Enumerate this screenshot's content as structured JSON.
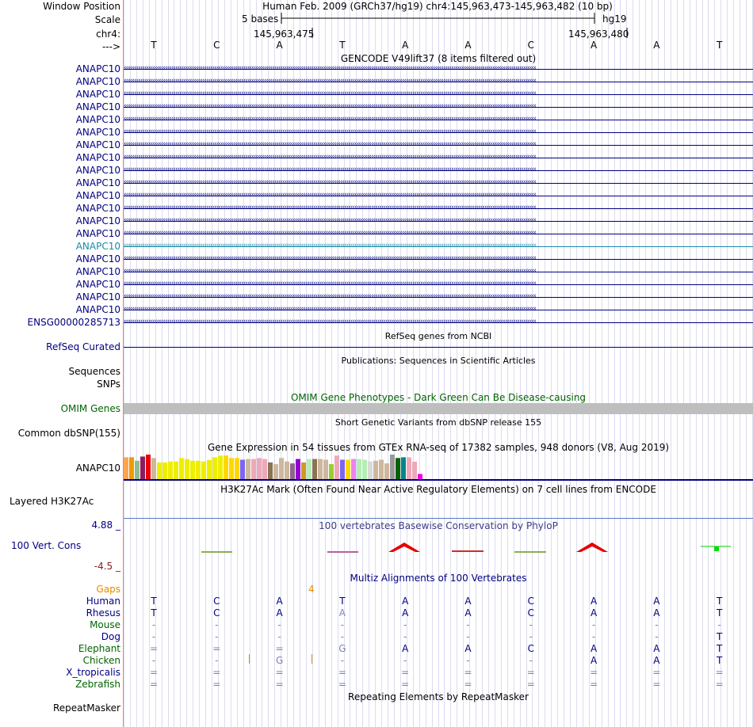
{
  "header": {
    "window_position_label": "Window Position",
    "scale_label": "Scale",
    "chr_label": "chr4:",
    "strand_label": "--->",
    "assembly_text": "Human Feb. 2009 (GRCh37/hg19)   chr4:145,963,473-145,963,482 (10 bp)",
    "scale_text": "5 bases",
    "db_text": "hg19",
    "pos_left": "145,963,475",
    "pos_right": "145,963,480",
    "bases": [
      "T",
      "C",
      "A",
      "T",
      "A",
      "A",
      "C",
      "A",
      "A",
      "T"
    ]
  },
  "gencode": {
    "title": "GENCODE V49lift37 (8 items filtered out)",
    "rows": [
      {
        "label": "ANAPC10",
        "color": "#000080"
      },
      {
        "label": "ANAPC10",
        "color": "#000080"
      },
      {
        "label": "ANAPC10",
        "color": "#000080"
      },
      {
        "label": "ANAPC10",
        "color": "#000080"
      },
      {
        "label": "ANAPC10",
        "color": "#000080"
      },
      {
        "label": "ANAPC10",
        "color": "#000080"
      },
      {
        "label": "ANAPC10",
        "color": "#000080"
      },
      {
        "label": "ANAPC10",
        "color": "#000080"
      },
      {
        "label": "ANAPC10",
        "color": "#000080"
      },
      {
        "label": "ANAPC10",
        "color": "#000080"
      },
      {
        "label": "ANAPC10",
        "color": "#000080"
      },
      {
        "label": "ANAPC10",
        "color": "#000080"
      },
      {
        "label": "ANAPC10",
        "color": "#000080"
      },
      {
        "label": "ANAPC10",
        "color": "#000080"
      },
      {
        "label": "ANAPC10",
        "color": "#1a8aa8"
      },
      {
        "label": "ANAPC10",
        "color": "#000080"
      },
      {
        "label": "ANAPC10",
        "color": "#000080"
      },
      {
        "label": "ANAPC10",
        "color": "#000080"
      },
      {
        "label": "ANAPC10",
        "color": "#000080"
      },
      {
        "label": "ANAPC10",
        "color": "#000080"
      },
      {
        "label": "ENSG00000285713",
        "color": "#000080"
      }
    ]
  },
  "refseq": {
    "title": "RefSeq genes from NCBI",
    "label": "RefSeq Curated"
  },
  "publications": {
    "title": "Publications: Sequences in Scientific Articles",
    "label1": "Sequences",
    "label2": "SNPs"
  },
  "omim": {
    "title": "OMIM Gene Phenotypes - Dark Green Can Be Disease-causing",
    "label": "OMIM Genes"
  },
  "dbsnp": {
    "title": "Short Genetic Variants from dbSNP release 155",
    "label": "Common dbSNP(155)"
  },
  "gtex": {
    "title": "Gene Expression in 54 tissues from GTEx RNA-seq of 17382 samples, 948 donors (V8, Aug 2019)",
    "label": "ANAPC10",
    "bar_values": [
      0.89,
      0.89,
      0.75,
      0.92,
      1.0,
      0.86,
      0.68,
      0.68,
      0.72,
      0.72,
      0.86,
      0.82,
      0.75,
      0.75,
      0.72,
      0.78,
      0.89,
      0.96,
      0.96,
      0.86,
      0.86,
      0.79,
      0.82,
      0.82,
      0.86,
      0.82,
      0.68,
      0.61,
      0.86,
      0.72,
      0.64,
      0.82,
      0.68,
      0.82,
      0.82,
      0.82,
      0.79,
      0.61,
      0.96,
      0.79,
      0.79,
      0.82,
      0.82,
      0.79,
      0.72,
      0.75,
      0.79,
      0.64,
      1.0,
      0.86,
      0.89,
      0.89,
      0.71,
      0.21
    ],
    "bar_colors": [
      "#ffa54f",
      "#ee9a00",
      "#8fbc8f",
      "#8b1c62",
      "#ee0000",
      "#cdb79e",
      "#eeee00",
      "#eeee00",
      "#eeee00",
      "#eeee00",
      "#eeee00",
      "#eeee00",
      "#eeee00",
      "#eeee00",
      "#eeee00",
      "#eeee00",
      "#eeee00",
      "#eeee00",
      "#ffd700",
      "#ffd700",
      "#ffd700",
      "#7a67ee",
      "#cdb79e",
      "#eea9b8",
      "#eea9b8",
      "#eea9b8",
      "#8b7355",
      "#cdb79e",
      "#cdb79e",
      "#cdb79e",
      "#8b668b",
      "#9400d3",
      "#cd9b1d",
      "#b4eeb4",
      "#8b7355",
      "#cdb79e",
      "#cdb79e",
      "#9acd32",
      "#eea9b8",
      "#7a67ee",
      "#ffd700",
      "#ee82ee",
      "#b4eeb4",
      "#b4eeb4",
      "#d9d9d9",
      "#cdb79e",
      "#cdb79e",
      "#cdb79e",
      "#9a9a9a",
      "#006400",
      "#00868b",
      "#eea9b8",
      "#eea9b8",
      "#ee00ee"
    ]
  },
  "h3k27ac": {
    "title": "H3K27Ac Mark (Often Found Near Active Regulatory Elements) on 7 cell lines from ENCODE",
    "label": "Layered H3K27Ac"
  },
  "phylop": {
    "title": "100 vertebrates Basewise Conservation by PhyloP",
    "label": "100 Vert. Cons",
    "max": "4.88 _",
    "min": "-4.5 _"
  },
  "multiz": {
    "title": "Multiz Alignments of 100 Vertebrates",
    "gaps_label": "Gaps",
    "gap_count": "4",
    "species": [
      {
        "name": "Human",
        "color": "#000080",
        "bases": [
          "T",
          "C",
          "A",
          "T",
          "A",
          "A",
          "C",
          "A",
          "A",
          "T"
        ]
      },
      {
        "name": "Rhesus",
        "color": "#000080",
        "bases": [
          "T",
          "C",
          "A",
          "A",
          "A",
          "A",
          "C",
          "A",
          "A",
          "T"
        ]
      },
      {
        "name": "Mouse",
        "color": "#006400",
        "bases": [
          "-",
          "-",
          "-",
          "-",
          "-",
          "-",
          "-",
          "-",
          "-",
          "-"
        ]
      },
      {
        "name": "Dog",
        "color": "#000080",
        "bases": [
          "-",
          "-",
          "-",
          "-",
          "-",
          "-",
          "-",
          "-",
          "-",
          "T"
        ]
      },
      {
        "name": "Elephant",
        "color": "#006400",
        "bases": [
          "=",
          "=",
          "=",
          "G",
          "A",
          "A",
          "C",
          "A",
          "A",
          "T"
        ]
      },
      {
        "name": "Chicken",
        "color": "#006400",
        "bases": [
          "-",
          "-",
          "G",
          "-",
          "-",
          "-",
          "-",
          "A",
          "A",
          "T"
        ]
      },
      {
        "name": "X_tropicalis",
        "color": "#000080",
        "bases": [
          "=",
          "=",
          "=",
          "=",
          "=",
          "=",
          "=",
          "=",
          "=",
          "="
        ]
      },
      {
        "name": "Zebrafish",
        "color": "#006400",
        "bases": [
          "=",
          "=",
          "=",
          "=",
          "=",
          "=",
          "=",
          "=",
          "=",
          "="
        ]
      }
    ]
  },
  "repeatmasker": {
    "title": "Repeating Elements by RepeatMasker",
    "label": "RepeatMasker"
  }
}
